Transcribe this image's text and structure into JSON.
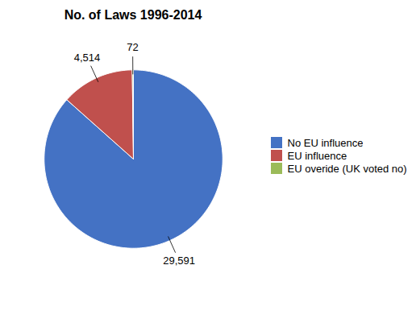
{
  "chart_data": {
    "type": "pie",
    "title": "No. of Laws 1996-2014",
    "categories": [
      "No EU influence",
      "EU influence",
      "EU overide (UK voted no)"
    ],
    "values": [
      29591,
      4514,
      72
    ],
    "value_labels": [
      "29,591",
      "4,514",
      "72"
    ],
    "colors": [
      "#4472C4",
      "#C0504D",
      "#9BBB59"
    ],
    "data_labels": true,
    "legend": "right"
  }
}
